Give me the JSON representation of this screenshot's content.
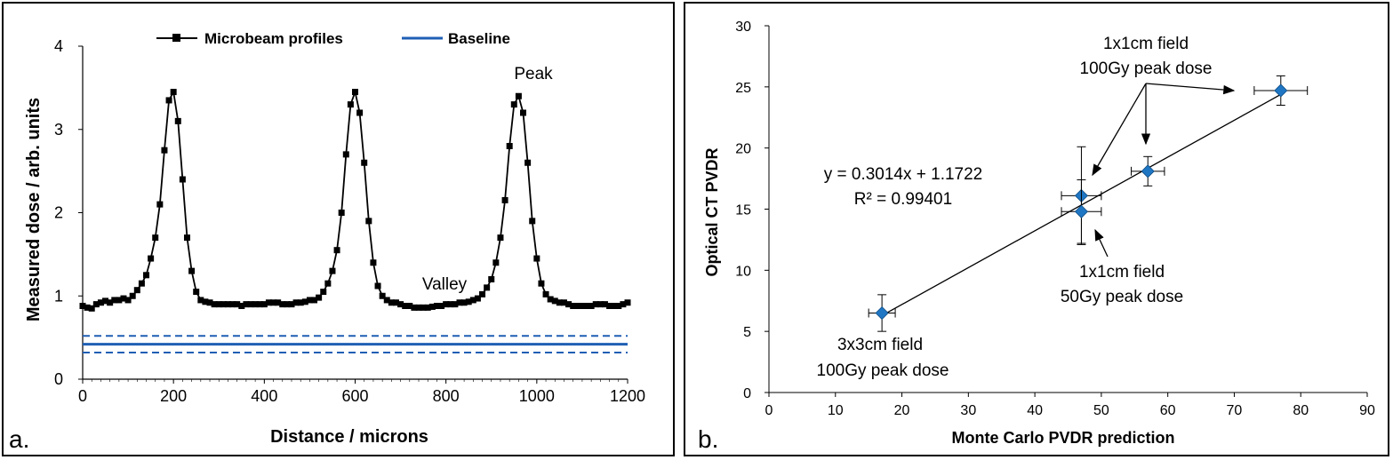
{
  "chart_data": [
    {
      "panel_label": "a.",
      "type": "line",
      "xlabel": "Distance / microns",
      "ylabel": "Measured dose / arb. units",
      "xlim": [
        0,
        1200
      ],
      "ylim": [
        0,
        4
      ],
      "xticks": [
        "0",
        "200",
        "400",
        "600",
        "800",
        "1000",
        "1200"
      ],
      "yticks": [
        "0",
        "1",
        "2",
        "3",
        "4"
      ],
      "legend_position": "top",
      "legend": [
        "Microbeam profiles",
        "Baseline"
      ],
      "series": [
        {
          "name": "Microbeam profiles",
          "color": "#000000",
          "marker": "square",
          "x": [
            0,
            10,
            20,
            30,
            40,
            50,
            60,
            70,
            80,
            90,
            100,
            110,
            120,
            130,
            140,
            150,
            160,
            170,
            180,
            190,
            200,
            210,
            220,
            230,
            240,
            250,
            260,
            270,
            280,
            290,
            300,
            310,
            320,
            330,
            340,
            350,
            360,
            370,
            380,
            390,
            400,
            410,
            420,
            430,
            440,
            450,
            460,
            470,
            480,
            490,
            500,
            510,
            520,
            530,
            540,
            550,
            560,
            570,
            580,
            590,
            600,
            610,
            620,
            630,
            640,
            650,
            660,
            670,
            680,
            690,
            700,
            710,
            720,
            730,
            740,
            750,
            760,
            770,
            780,
            790,
            800,
            810,
            820,
            830,
            840,
            850,
            860,
            870,
            880,
            890,
            900,
            910,
            920,
            930,
            940,
            950,
            960,
            970,
            980,
            990,
            1000,
            1010,
            1020,
            1030,
            1040,
            1050,
            1060,
            1070,
            1080,
            1090,
            1100,
            1110,
            1120,
            1130,
            1140,
            1150,
            1160,
            1170,
            1180,
            1190,
            1200
          ],
          "y": [
            0.88,
            0.86,
            0.85,
            0.9,
            0.92,
            0.94,
            0.92,
            0.95,
            0.95,
            0.97,
            0.95,
            1.0,
            1.07,
            1.15,
            1.25,
            1.45,
            1.7,
            2.1,
            2.75,
            3.35,
            3.45,
            3.1,
            2.4,
            1.7,
            1.3,
            1.05,
            0.95,
            0.93,
            0.92,
            0.9,
            0.9,
            0.9,
            0.9,
            0.9,
            0.9,
            0.88,
            0.9,
            0.9,
            0.9,
            0.9,
            0.9,
            0.92,
            0.92,
            0.92,
            0.9,
            0.9,
            0.9,
            0.92,
            0.92,
            0.93,
            0.95,
            0.95,
            0.98,
            1.05,
            1.15,
            1.3,
            1.55,
            2.0,
            2.7,
            3.3,
            3.45,
            3.2,
            2.6,
            1.9,
            1.4,
            1.12,
            1.0,
            0.95,
            0.92,
            0.92,
            0.9,
            0.88,
            0.88,
            0.86,
            0.86,
            0.86,
            0.86,
            0.87,
            0.88,
            0.88,
            0.9,
            0.9,
            0.9,
            0.92,
            0.92,
            0.93,
            0.95,
            0.97,
            1.02,
            1.1,
            1.2,
            1.4,
            1.7,
            2.15,
            2.8,
            3.3,
            3.4,
            3.2,
            2.6,
            1.9,
            1.45,
            1.15,
            1.02,
            0.96,
            0.94,
            0.92,
            0.92,
            0.9,
            0.88,
            0.88,
            0.88,
            0.88,
            0.88,
            0.9,
            0.9,
            0.9,
            0.88,
            0.88,
            0.88,
            0.9,
            0.92
          ]
        },
        {
          "name": "Baseline",
          "color": "#1f5fb4",
          "x": [
            0,
            1200
          ],
          "y": [
            0.42,
            0.42
          ],
          "band": [
            0.32,
            0.52
          ]
        }
      ],
      "annotations": [
        {
          "text": "Peak",
          "x": 1010,
          "y": 3.55
        },
        {
          "text": "Valley",
          "x": 790,
          "y": 1.05
        }
      ]
    },
    {
      "panel_label": "b.",
      "type": "scatter",
      "xlabel": "Monte Carlo PVDR prediction",
      "ylabel": "Optical CT PVDR",
      "xlim": [
        0,
        90
      ],
      "ylim": [
        0,
        30
      ],
      "xticks": [
        "0",
        "10",
        "20",
        "30",
        "40",
        "50",
        "60",
        "70",
        "80",
        "90"
      ],
      "yticks": [
        "0",
        "5",
        "10",
        "15",
        "20",
        "25",
        "30"
      ],
      "series": [
        {
          "color": "#1f77c4",
          "marker": "diamond",
          "points": [
            {
              "x": 17.0,
              "y": 6.5,
              "xerr": 2.0,
              "yerr": 1.5
            },
            {
              "x": 47.0,
              "y": 16.1,
              "xerr": 3.0,
              "yerr": 4.0
            },
            {
              "x": 47.0,
              "y": 14.8,
              "xerr": 3.0,
              "yerr": 2.6
            },
            {
              "x": 57.0,
              "y": 18.1,
              "xerr": 2.5,
              "yerr": 1.2
            },
            {
              "x": 77.0,
              "y": 24.7,
              "xerr": 4.0,
              "yerr": 1.2
            }
          ]
        }
      ],
      "trendline": {
        "slope": 0.3014,
        "intercept": 1.1722,
        "x_range": [
          17.0,
          77.0
        ]
      },
      "equation_lines": [
        "y = 0.3014x + 1.1722",
        "R² = 0.99401"
      ],
      "annotations": [
        {
          "lines": [
            "1x1cm field",
            "100Gy peak dose"
          ]
        },
        {
          "lines": [
            "1x1cm field",
            "50Gy peak dose"
          ]
        },
        {
          "lines": [
            "3x3cm field",
            "100Gy peak dose"
          ]
        }
      ]
    }
  ]
}
